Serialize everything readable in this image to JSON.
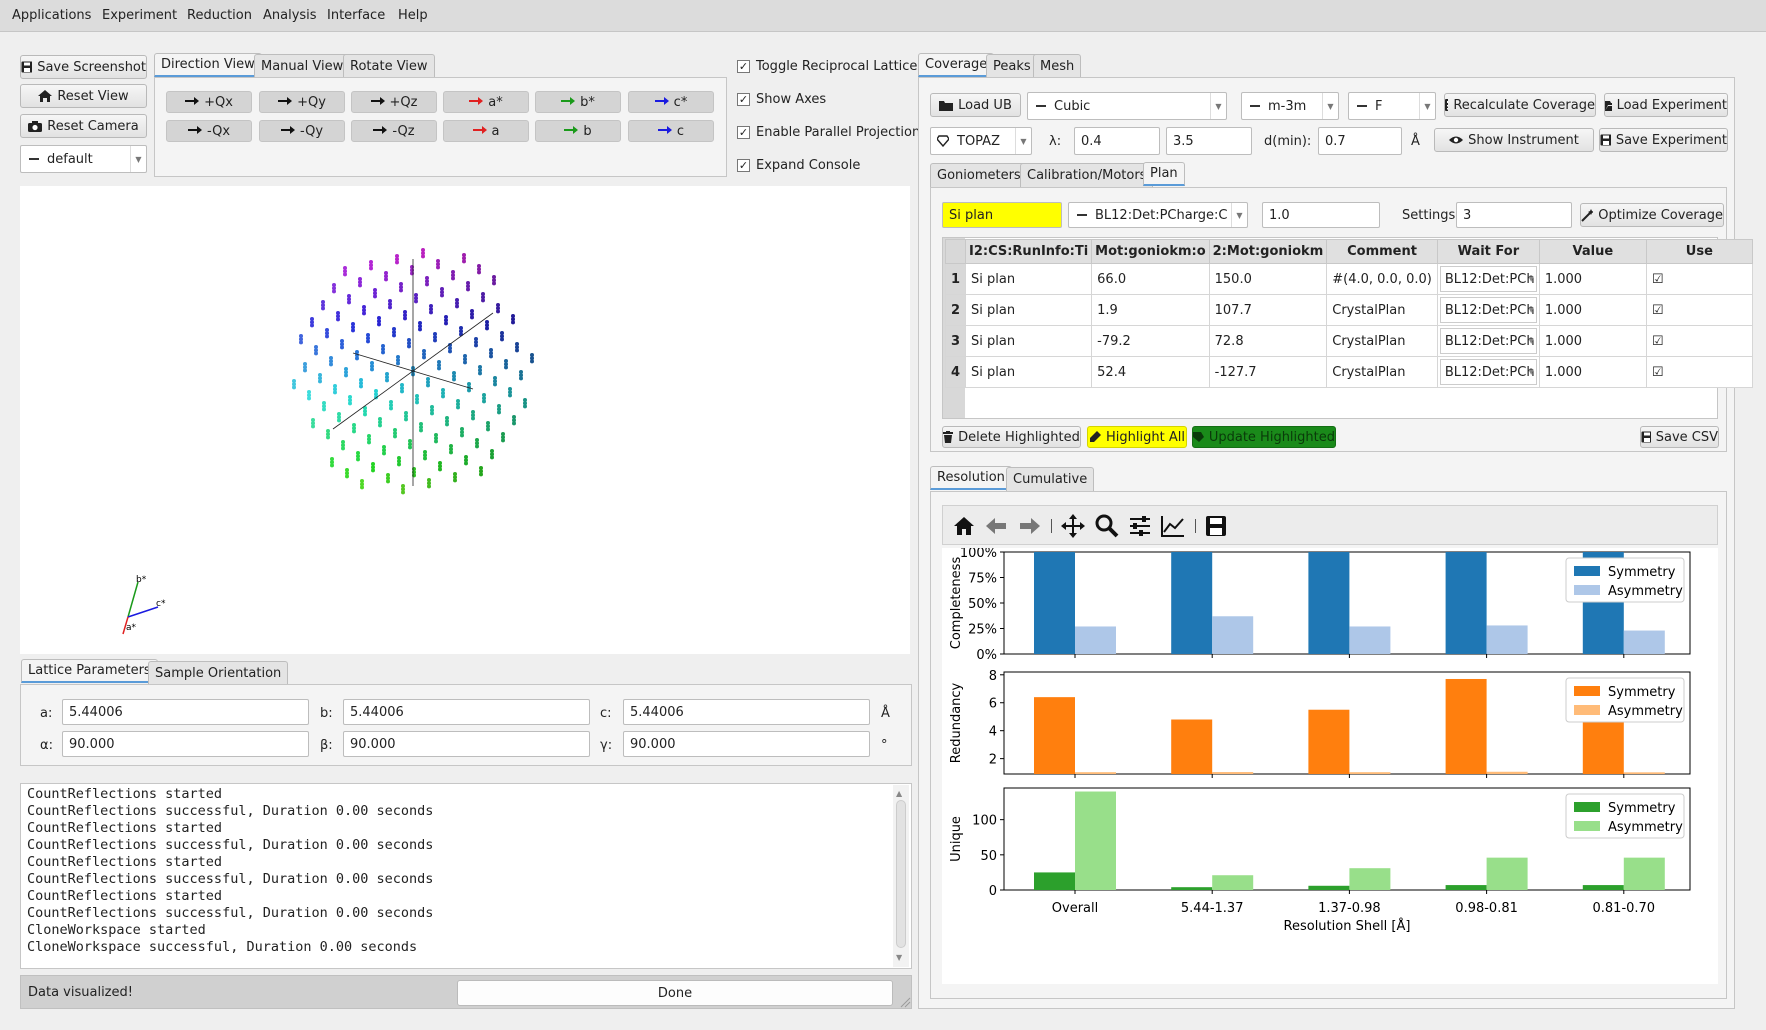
{
  "menu": [
    "Applications",
    "Experiment",
    "Reduction",
    "Analysis",
    "Interface",
    "Help"
  ],
  "left": {
    "save_screenshot": "Save Screenshot",
    "reset_view": "Reset View",
    "reset_camera": "Reset Camera",
    "camera_preset": "default",
    "view_tabs": [
      "Direction View",
      "Manual View",
      "Rotate View"
    ],
    "direction_buttons_row1": [
      {
        "label": "+Qx",
        "color": "#111111"
      },
      {
        "label": "+Qy",
        "color": "#111111"
      },
      {
        "label": "+Qz",
        "color": "#111111"
      },
      {
        "label": "a*",
        "color": "#e02020"
      },
      {
        "label": "b*",
        "color": "#1a9a1a"
      },
      {
        "label": "c*",
        "color": "#1a1ae0"
      }
    ],
    "direction_buttons_row2": [
      {
        "label": "-Qx",
        "color": "#111111"
      },
      {
        "label": "-Qy",
        "color": "#111111"
      },
      {
        "label": "-Qz",
        "color": "#111111"
      },
      {
        "label": "a",
        "color": "#e02020"
      },
      {
        "label": "b",
        "color": "#1a9a1a"
      },
      {
        "label": "c",
        "color": "#1a1ae0"
      }
    ],
    "checkboxes": [
      {
        "label": "Toggle Reciprocal Lattice",
        "checked": true
      },
      {
        "label": "Show Axes",
        "checked": true
      },
      {
        "label": "Enable Parallel Projection",
        "checked": true
      },
      {
        "label": "Expand Console",
        "checked": true
      }
    ],
    "axes_labels": {
      "a": "a*",
      "b": "b*",
      "c": "c*"
    },
    "lattice_tabs": [
      "Lattice Parameters",
      "Sample Orientation"
    ],
    "lattice": {
      "a_label": "a:",
      "a": "5.44006",
      "b_label": "b:",
      "b": "5.44006",
      "c_label": "c:",
      "c": "5.44006",
      "alpha_label": "α:",
      "alpha": "90.000",
      "beta_label": "β:",
      "beta": "90.000",
      "gamma_label": "γ:",
      "gamma": "90.000",
      "length_unit": "Å",
      "angle_unit": "°"
    },
    "console_lines": [
      "CountReflections started",
      "CountReflections successful, Duration 0.00 seconds",
      "CountReflections started",
      "CountReflections successful, Duration 0.00 seconds",
      "CountReflections started",
      "CountReflections successful, Duration 0.00 seconds",
      "CountReflections started",
      "CountReflections successful, Duration 0.00 seconds",
      "CloneWorkspace started",
      "CloneWorkspace successful, Duration 0.00 seconds"
    ],
    "status_text": "Data visualized!",
    "progress_text": "Done"
  },
  "right": {
    "tabs": [
      "Coverage",
      "Peaks",
      "Mesh"
    ],
    "load_ub": "Load UB",
    "crystal_system": "Cubic",
    "point_group": "m-3m",
    "lattice_centering": "F",
    "recalculate": "Recalculate Coverage",
    "load_experiment": "Load Experiment",
    "instrument": "TOPAZ",
    "lambda_label": "λ:",
    "lambda_min": "0.4",
    "lambda_max": "3.5",
    "dmin_label": "d(min):",
    "dmin": "0.7",
    "dmin_unit": "Å",
    "show_instrument": "Show Instrument",
    "save_experiment": "Save Experiment",
    "sub_tabs": [
      "Goniometers",
      "Calibration/Motors",
      "Plan"
    ],
    "plan_name": "Si plan",
    "wait_variable": "BL12:Det:PCharge:C",
    "wait_value": "1.0",
    "settings_label": "Settings",
    "settings_value": "3",
    "optimize": "Optimize Coverage",
    "table_headers": [
      "I2:CS:RunInfo:Ti",
      "Mot:goniokm:o",
      "2:Mot:goniokm",
      "Comment",
      "Wait For",
      "Value",
      "Use"
    ],
    "table_rows": [
      {
        "n": "1",
        "title": "Si plan",
        "m1": "66.0",
        "m2": "150.0",
        "comment": "#(4.0, 0.0, 0.0)",
        "wait": "BL12:Det:PCh",
        "value": "1.000",
        "use": "☑"
      },
      {
        "n": "2",
        "title": "Si plan",
        "m1": "1.9",
        "m2": "107.7",
        "comment": "CrystalPlan",
        "wait": "BL12:Det:PCh",
        "value": "1.000",
        "use": "☑"
      },
      {
        "n": "3",
        "title": "Si plan",
        "m1": "-79.2",
        "m2": "72.8",
        "comment": "CrystalPlan",
        "wait": "BL12:Det:PCh",
        "value": "1.000",
        "use": "☑"
      },
      {
        "n": "4",
        "title": "Si plan",
        "m1": "52.4",
        "m2": "-127.7",
        "comment": "CrystalPlan",
        "wait": "BL12:Det:PCh",
        "value": "1.000",
        "use": "☑"
      }
    ],
    "delete_highlighted": "Delete Highlighted",
    "highlight_all": "Highlight All",
    "update_highlighted": "Update Highlighted",
    "save_csv": "Save CSV",
    "plot_tabs": [
      "Resolution",
      "Cumulative"
    ],
    "colors": {
      "highlight": "#ffff00",
      "update": "#1a8a1a",
      "plan_name_bg": "#ffff00"
    }
  },
  "chart_data": [
    {
      "type": "bar",
      "categories": [
        "Overall",
        "5.44-1.37",
        "1.37-0.98",
        "0.98-0.81",
        "0.81-0.70"
      ],
      "ylabel": "Completeness",
      "ylim": [
        0,
        100
      ],
      "yticks": [
        "0%",
        "25%",
        "50%",
        "75%",
        "100%"
      ],
      "series": [
        {
          "name": "Symmetry",
          "values": [
            100,
            100,
            100,
            100,
            100
          ],
          "color": "#1f77b4"
        },
        {
          "name": "Asymmetry",
          "values": [
            27,
            37,
            27,
            28,
            23
          ],
          "color": "#aec7e8"
        }
      ],
      "legend": "top-right"
    },
    {
      "type": "bar",
      "categories": [
        "Overall",
        "5.44-1.37",
        "1.37-0.98",
        "0.98-0.81",
        "0.81-0.70"
      ],
      "ylabel": "Redundancy",
      "ylim": [
        0.9,
        8.2
      ],
      "yticks": [
        "2",
        "4",
        "6",
        "8"
      ],
      "series": [
        {
          "name": "Symmetry",
          "values": [
            6.4,
            4.8,
            5.5,
            7.7,
            6.4
          ],
          "color": "#ff7f0e"
        },
        {
          "name": "Asymmetry",
          "values": [
            1.03,
            1.04,
            1.03,
            1.06,
            1.02
          ],
          "color": "#ffbb78"
        }
      ],
      "legend": "top-right"
    },
    {
      "type": "bar",
      "categories": [
        "Overall",
        "5.44-1.37",
        "1.37-0.98",
        "0.98-0.81",
        "0.81-0.70"
      ],
      "ylabel": "Unique",
      "xlabel": "Resolution Shell [Å]",
      "ylim": [
        0,
        145
      ],
      "yticks": [
        "0",
        "50",
        "100"
      ],
      "series": [
        {
          "name": "Symmetry",
          "values": [
            25,
            4,
            6,
            7,
            7
          ],
          "color": "#2ca02c"
        },
        {
          "name": "Asymmetry",
          "values": [
            140,
            21,
            31,
            46,
            46
          ],
          "color": "#98df8a"
        }
      ],
      "legend": "top-right"
    }
  ]
}
